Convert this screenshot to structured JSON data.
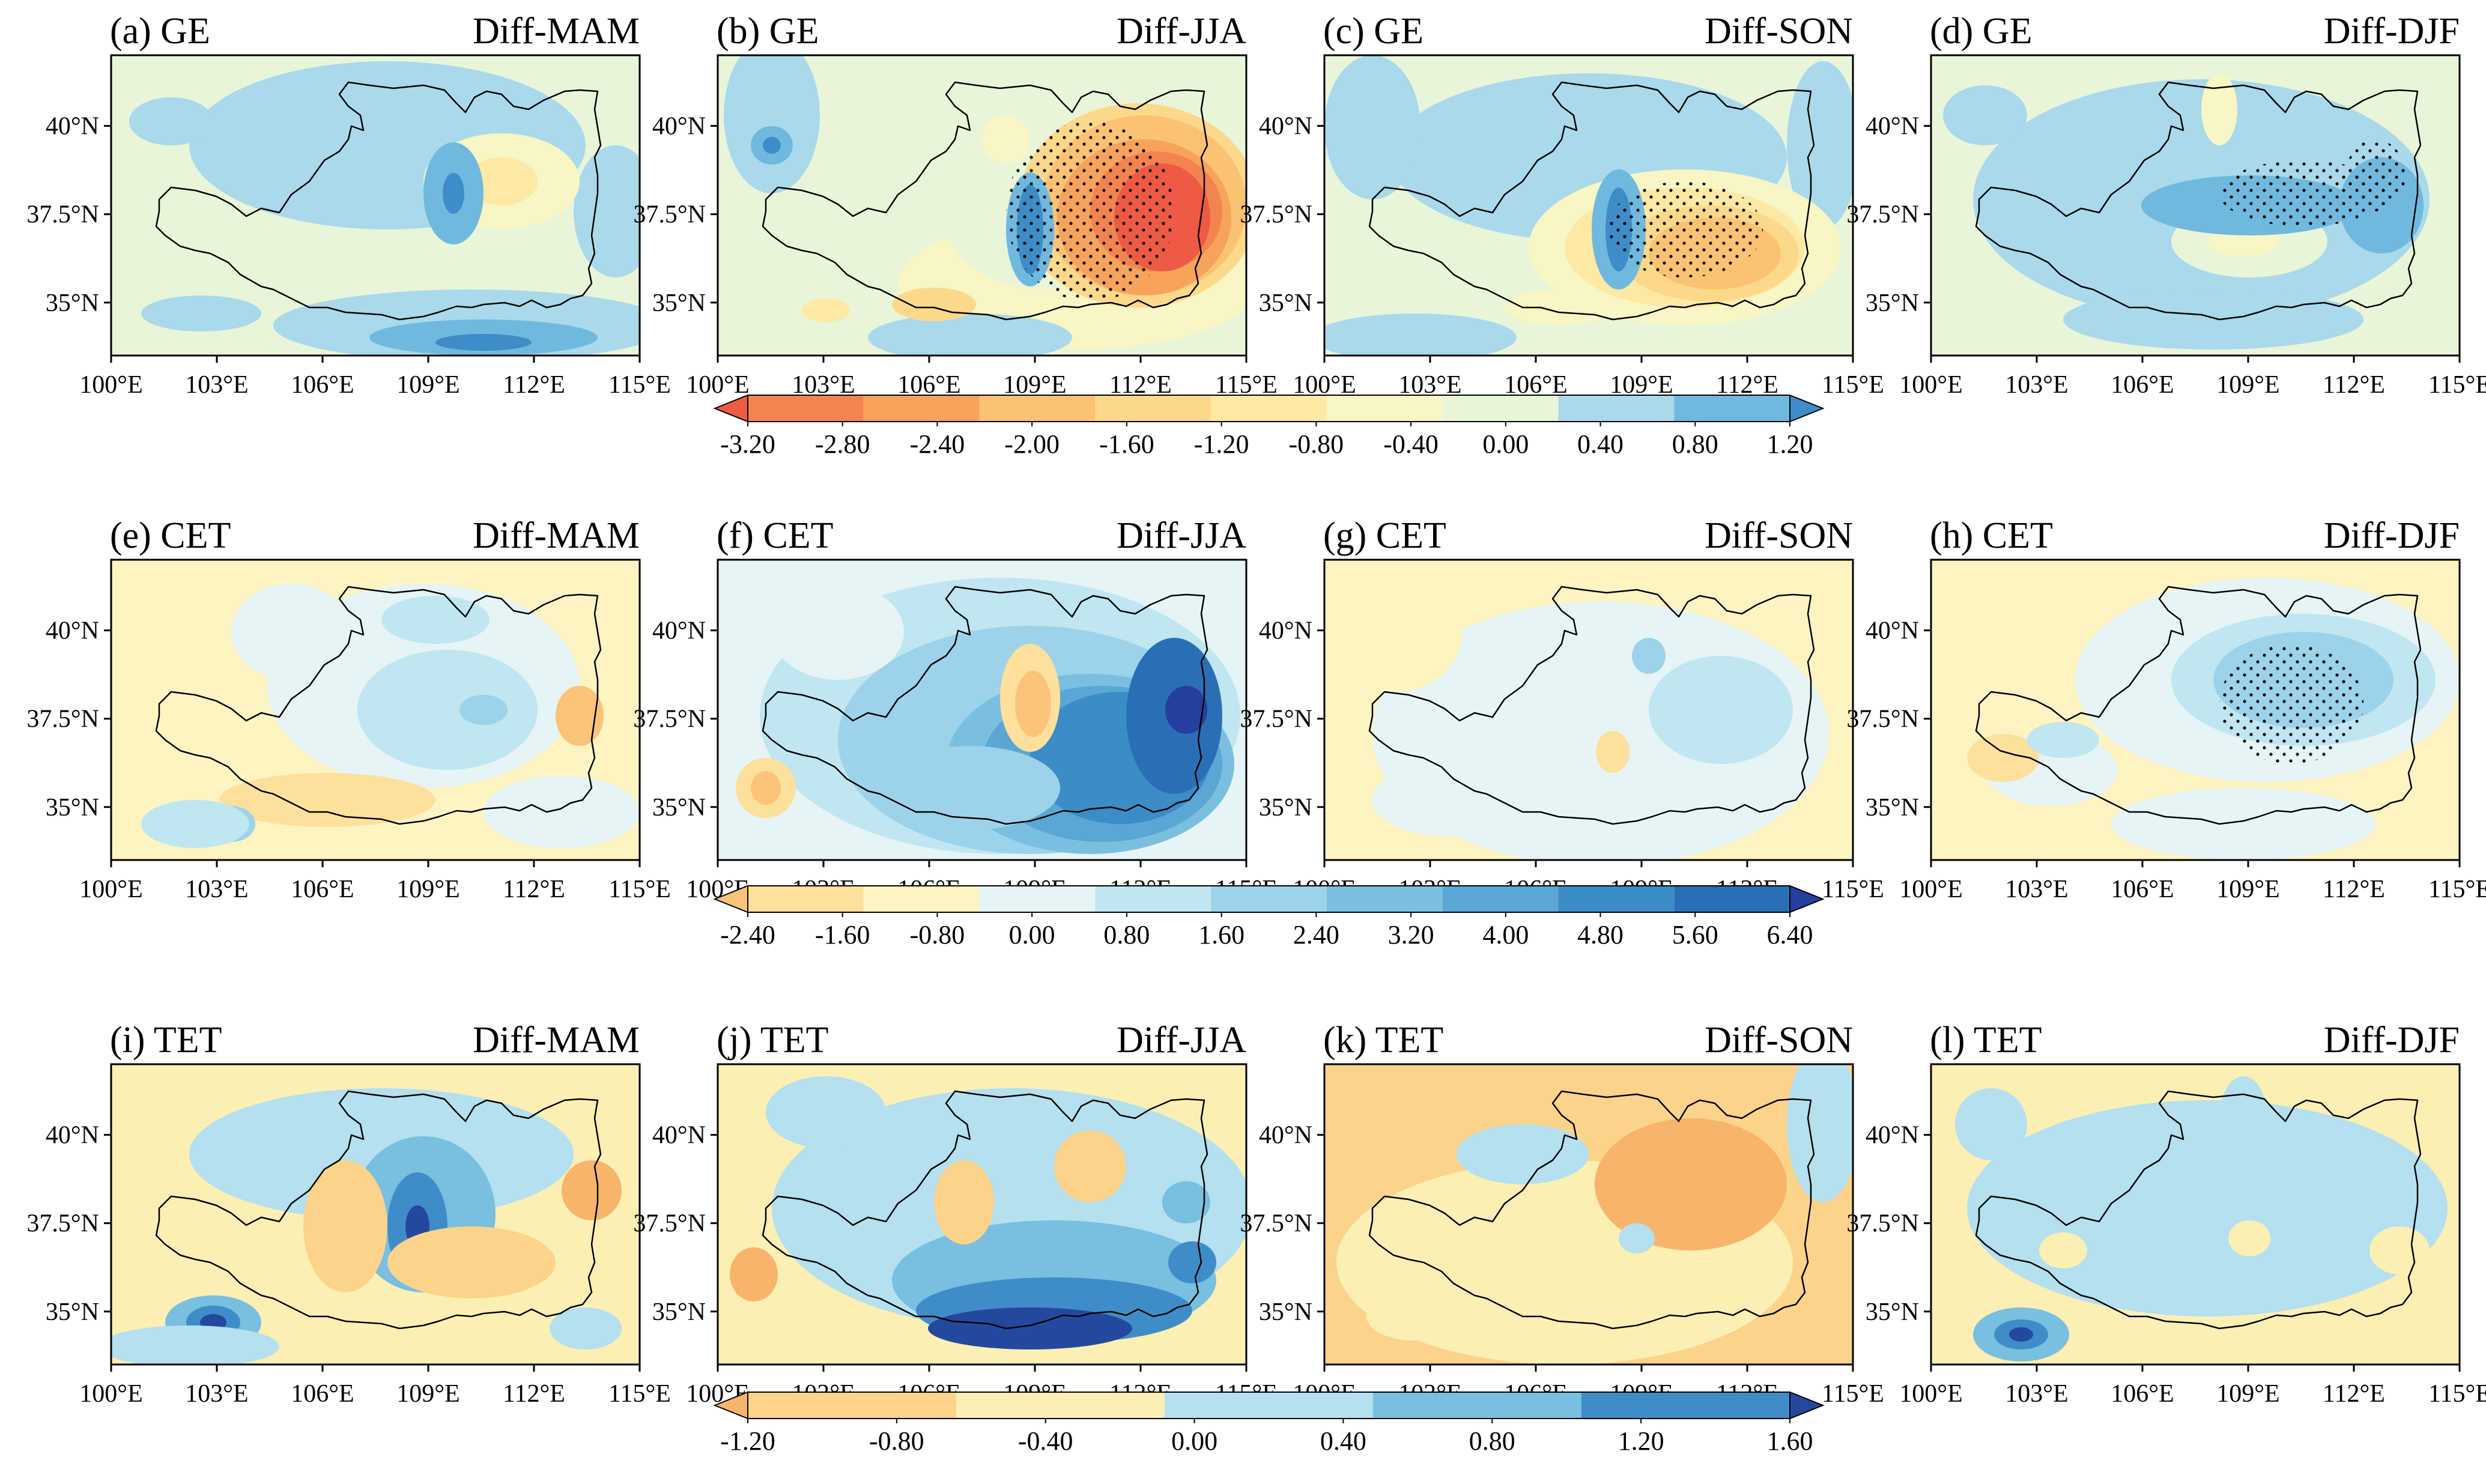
{
  "figure": {
    "panels": [
      {
        "id": "a",
        "label": "(a) GE",
        "title": "Diff-MAM"
      },
      {
        "id": "b",
        "label": "(b) GE",
        "title": "Diff-JJA"
      },
      {
        "id": "c",
        "label": "(c) GE",
        "title": "Diff-SON"
      },
      {
        "id": "d",
        "label": "(d) GE",
        "title": "Diff-DJF"
      },
      {
        "id": "e",
        "label": "(e) CET",
        "title": "Diff-MAM"
      },
      {
        "id": "f",
        "label": "(f) CET",
        "title": "Diff-JJA"
      },
      {
        "id": "g",
        "label": "(g) CET",
        "title": "Diff-SON"
      },
      {
        "id": "h",
        "label": "(h) CET",
        "title": "Diff-DJF"
      },
      {
        "id": "i",
        "label": "(i) TET",
        "title": "Diff-MAM"
      },
      {
        "id": "j",
        "label": "(j) TET",
        "title": "Diff-JJA"
      },
      {
        "id": "k",
        "label": "(k) TET",
        "title": "Diff-SON"
      },
      {
        "id": "l",
        "label": "(l) TET",
        "title": "Diff-DJF"
      }
    ],
    "lon_ticks": [
      "100°E",
      "103°E",
      "106°E",
      "109°E",
      "112°E",
      "115°E"
    ],
    "lat_ticks": [
      "35°N",
      "37.5°N",
      "40°N"
    ],
    "colorbars": [
      {
        "ticks": [
          "-3.20",
          "-2.80",
          "-2.40",
          "-2.00",
          "-1.60",
          "-1.20",
          "-0.80",
          "-0.40",
          "0.00",
          "0.40",
          "0.80",
          "1.20"
        ],
        "colors": [
          "#ee5a43",
          "#f3844f",
          "#f7a35c",
          "#fbc273",
          "#fcd98a",
          "#fde9a3",
          "#f7f6c4",
          "#e9f5d9",
          "#a9d9eb",
          "#70b9de",
          "#3e8cc8"
        ]
      },
      {
        "ticks": [
          "-2.40",
          "-1.60",
          "-0.80",
          "0.00",
          "0.80",
          "1.60",
          "2.40",
          "3.20",
          "4.00",
          "4.80",
          "5.60",
          "6.40"
        ],
        "colors": [
          "#fbc37a",
          "#fde09c",
          "#fdf4c2",
          "#e6f4f6",
          "#bfe6f1",
          "#9cd3ea",
          "#7bbfe0",
          "#5aa7d5",
          "#3b8cc7",
          "#2a6fb6",
          "#243f9e"
        ]
      },
      {
        "ticks": [
          "-1.20",
          "-0.80",
          "-0.40",
          "0.00",
          "0.40",
          "0.80",
          "1.20",
          "1.60"
        ],
        "colors": [
          "#f8b46a",
          "#fcd38a",
          "#fcefb4",
          "#b4e0ef",
          "#78bfe0",
          "#3f8dc8",
          "#25489f"
        ]
      }
    ],
    "colors": {
      "boundary": "#000000",
      "background": "#ffffff"
    }
  },
  "chart_data": [
    {
      "type": "contour-map",
      "variable": "GE",
      "season_titles": [
        "Diff-MAM",
        "Diff-JJA",
        "Diff-SON",
        "Diff-DJF"
      ],
      "levels": [
        -3.2,
        -2.8,
        -2.4,
        -2.0,
        -1.6,
        -1.2,
        -0.8,
        -0.4,
        0.0,
        0.4,
        0.8,
        1.2
      ],
      "xlim": [
        100,
        115
      ],
      "ylim": [
        33.5,
        42
      ],
      "x_unit": "°E",
      "y_unit": "°N",
      "stippling": "significance in JJA, SON and DJF panels"
    },
    {
      "type": "contour-map",
      "variable": "CET",
      "season_titles": [
        "Diff-MAM",
        "Diff-JJA",
        "Diff-SON",
        "Diff-DJF"
      ],
      "levels": [
        -2.4,
        -1.6,
        -0.8,
        0.0,
        0.8,
        1.6,
        2.4,
        3.2,
        4.0,
        4.8,
        5.6,
        6.4
      ],
      "xlim": [
        100,
        115
      ],
      "ylim": [
        33.5,
        42
      ],
      "x_unit": "°E",
      "y_unit": "°N",
      "stippling": "significance in DJF panel"
    },
    {
      "type": "contour-map",
      "variable": "TET",
      "season_titles": [
        "Diff-MAM",
        "Diff-JJA",
        "Diff-SON",
        "Diff-DJF"
      ],
      "levels": [
        -1.2,
        -0.8,
        -0.4,
        0.0,
        0.4,
        0.8,
        1.2,
        1.6
      ],
      "xlim": [
        100,
        115
      ],
      "ylim": [
        33.5,
        42
      ],
      "x_unit": "°E",
      "y_unit": "°N"
    }
  ]
}
